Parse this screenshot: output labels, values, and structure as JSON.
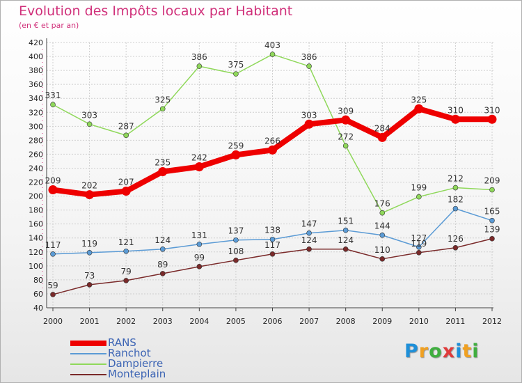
{
  "chart_data": {
    "type": "line",
    "title": "Evolution des Impôts locaux par Habitant",
    "subtitle": "(en € et par an)",
    "x": [
      "2000",
      "2001",
      "2002",
      "2003",
      "2004",
      "2005",
      "2006",
      "2007",
      "2008",
      "2009",
      "2010",
      "2011",
      "2012"
    ],
    "ylim": [
      40,
      420
    ],
    "yticks": [
      "40",
      "60",
      "80",
      "100",
      "120",
      "140",
      "160",
      "180",
      "200",
      "220",
      "240",
      "260",
      "280",
      "300",
      "320",
      "340",
      "360",
      "380",
      "400",
      "420"
    ],
    "series": [
      {
        "name": "RANS",
        "color": "#ee0000",
        "values": [
          209,
          202,
          207,
          235,
          242,
          259,
          266,
          303,
          309,
          284,
          325,
          310,
          310
        ]
      },
      {
        "name": "Ranchot",
        "color": "#5b9bd5",
        "values": [
          117,
          119,
          121,
          124,
          131,
          137,
          138,
          147,
          151,
          144,
          127,
          182,
          165
        ]
      },
      {
        "name": "Dampierre",
        "color": "#8fd85a",
        "values": [
          331,
          303,
          287,
          325,
          386,
          375,
          403,
          386,
          272,
          176,
          199,
          212,
          209
        ]
      },
      {
        "name": "Monteplain",
        "color": "#7a2a2a",
        "values": [
          59,
          73,
          79,
          89,
          99,
          108,
          117,
          124,
          124,
          110,
          119,
          126,
          139
        ]
      }
    ]
  },
  "logo": {
    "letters": [
      "P",
      "r",
      "o",
      "x",
      "i",
      "t",
      "i"
    ],
    "colors": [
      "#1e8fd8",
      "#f0a020",
      "#3fae3f",
      "#e03a3a",
      "#1e8fd8",
      "#f0a020",
      "#3fae3f"
    ]
  }
}
